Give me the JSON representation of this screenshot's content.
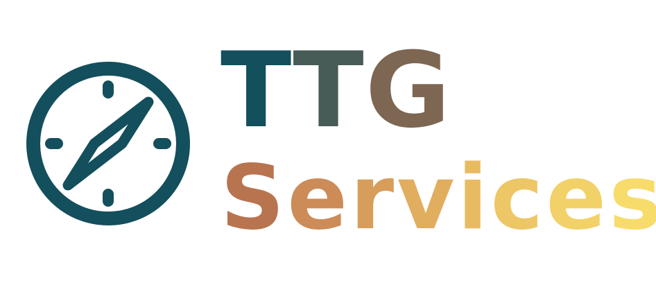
{
  "brand": {
    "line1": "TTG",
    "line2": "Services",
    "icon": "compass-icon",
    "colors": {
      "compass": "#134f5c",
      "line1": [
        "#134f5c",
        "#475b57",
        "#7d6652"
      ],
      "line2": [
        "#b8744f",
        "#cd8b57",
        "#d89d5b",
        "#e1ad5f",
        "#e8bb63",
        "#edc666",
        "#f2d168",
        "#f7dc6b"
      ]
    }
  }
}
